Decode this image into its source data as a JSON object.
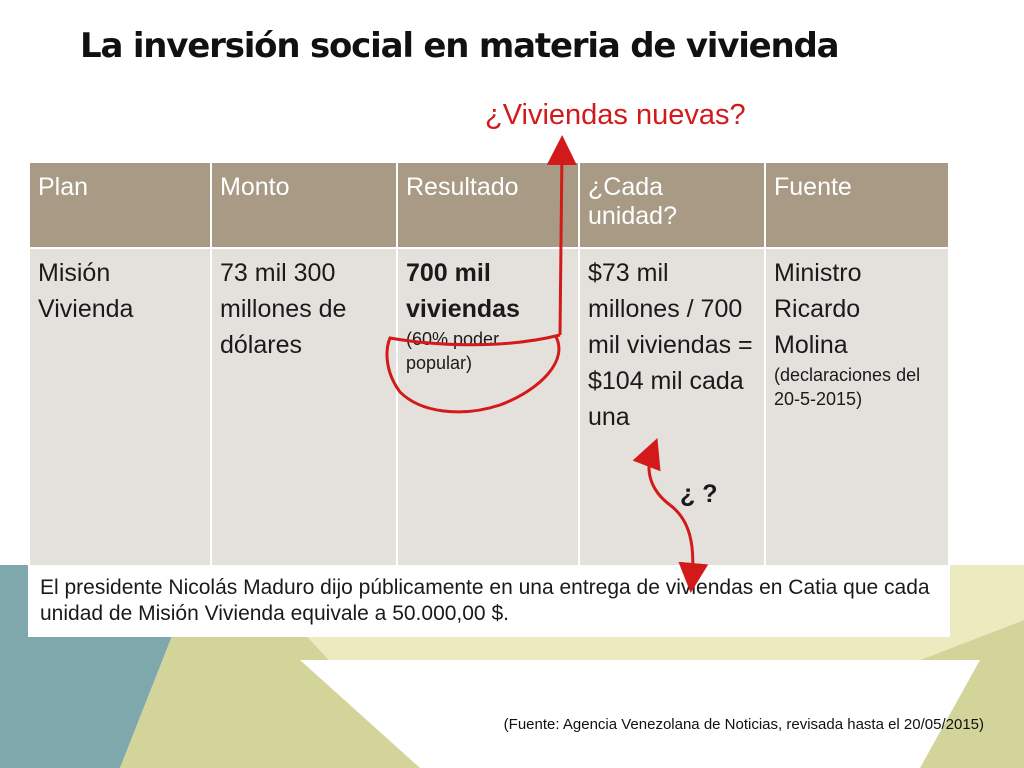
{
  "slide": {
    "title": "La inversión social en materia de vivienda",
    "annotation_top": "¿Viviendas nuevas?",
    "annotation_question": "¿ ?",
    "source_note": "(Fuente:  Agencia Venezolana de Noticias, revisada hasta el 20/05/2015)"
  },
  "table": {
    "headers": [
      "Plan",
      "Monto",
      "Resultado",
      "¿Cada unidad?",
      "Fuente"
    ],
    "row": {
      "plan": "Misión Vivienda",
      "monto": "73 mil 300 millones de dólares",
      "resultado_main": "700 mil viviendas",
      "resultado_note": "(60% poder popular)",
      "cada_unidad": "$73 mil millones / 700 mil viviendas = $104 mil cada una",
      "fuente_main": "Ministro Ricardo Molina",
      "fuente_note": "(declaraciones del 20-5-2015)"
    },
    "footnote": "El presidente Nicolás Maduro dijo públicamente en una entrega de viviendas en Catia que cada unidad de Misión Vivienda equivale a 50.000,00 $."
  },
  "colors": {
    "header_bg": "#a89a85",
    "cell_bg": "#e4e1dd",
    "annotation_red": "#d21a1a",
    "teal": "#7fa8ad",
    "olive": "#d2d49a",
    "cream": "#ecebc0"
  }
}
